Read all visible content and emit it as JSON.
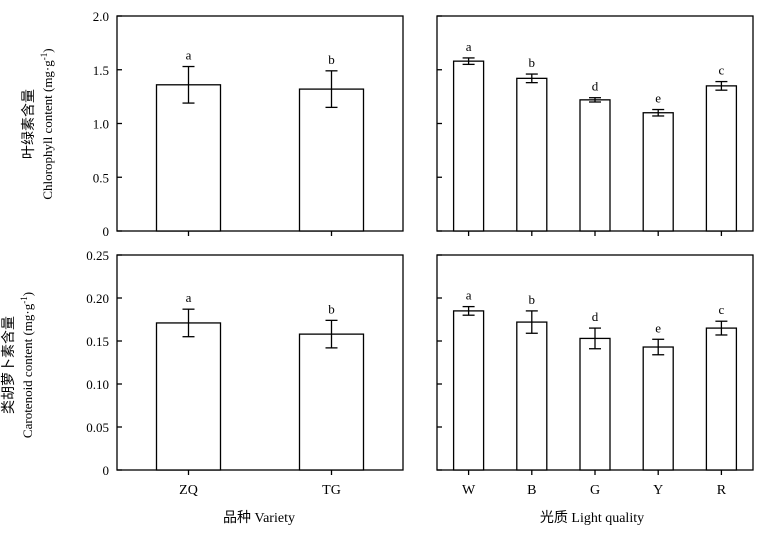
{
  "figure": {
    "left_ylabel_top_cn": "叶绿素含量",
    "left_ylabel_top_en": "Chlorophyll content (mg·g",
    "left_ylabel_bottom_cn": "类胡萝卜素含量",
    "left_ylabel_bottom_en": "Carotenoid content (mg·g",
    "ylabel_unit_sup": "-1",
    "ylabel_unit_close": ")",
    "xlabel_left": "品种 Variety",
    "xlabel_right": "光质 Light quality"
  },
  "chart_data": [
    {
      "type": "bar",
      "panel": "top-left",
      "categories": [
        "ZQ",
        "TG"
      ],
      "values": [
        1.36,
        1.32
      ],
      "errors": [
        0.17,
        0.17
      ],
      "letters": [
        "a",
        "b"
      ],
      "ylim": [
        0,
        2.0
      ],
      "yticks": [
        0,
        0.5,
        1.0,
        1.5,
        2.0
      ],
      "ytick_labels": [
        "0",
        "0.5",
        "1.0",
        "1.5",
        "2.0"
      ]
    },
    {
      "type": "bar",
      "panel": "top-right",
      "categories": [
        "W",
        "B",
        "G",
        "Y",
        "R"
      ],
      "values": [
        1.58,
        1.42,
        1.22,
        1.1,
        1.35
      ],
      "errors": [
        0.03,
        0.04,
        0.02,
        0.03,
        0.04
      ],
      "letters": [
        "a",
        "b",
        "d",
        "e",
        "c"
      ],
      "ylim": [
        0,
        2.0
      ],
      "yticks": [
        0,
        0.5,
        1.0,
        1.5,
        2.0
      ]
    },
    {
      "type": "bar",
      "panel": "bottom-left",
      "categories": [
        "ZQ",
        "TG"
      ],
      "values": [
        0.171,
        0.158
      ],
      "errors": [
        0.016,
        0.016
      ],
      "letters": [
        "a",
        "b"
      ],
      "ylim": [
        0,
        0.25
      ],
      "yticks": [
        0,
        0.05,
        0.1,
        0.15,
        0.2,
        0.25
      ],
      "ytick_labels": [
        "0",
        "0.05",
        "0.10",
        "0.15",
        "0.20",
        "0.25"
      ]
    },
    {
      "type": "bar",
      "panel": "bottom-right",
      "categories": [
        "W",
        "B",
        "G",
        "Y",
        "R"
      ],
      "values": [
        0.185,
        0.172,
        0.153,
        0.143,
        0.165
      ],
      "errors": [
        0.005,
        0.013,
        0.012,
        0.009,
        0.008
      ],
      "letters": [
        "a",
        "b",
        "d",
        "e",
        "c"
      ],
      "ylim": [
        0,
        0.25
      ],
      "yticks": [
        0,
        0.05,
        0.1,
        0.15,
        0.2,
        0.25
      ]
    }
  ]
}
